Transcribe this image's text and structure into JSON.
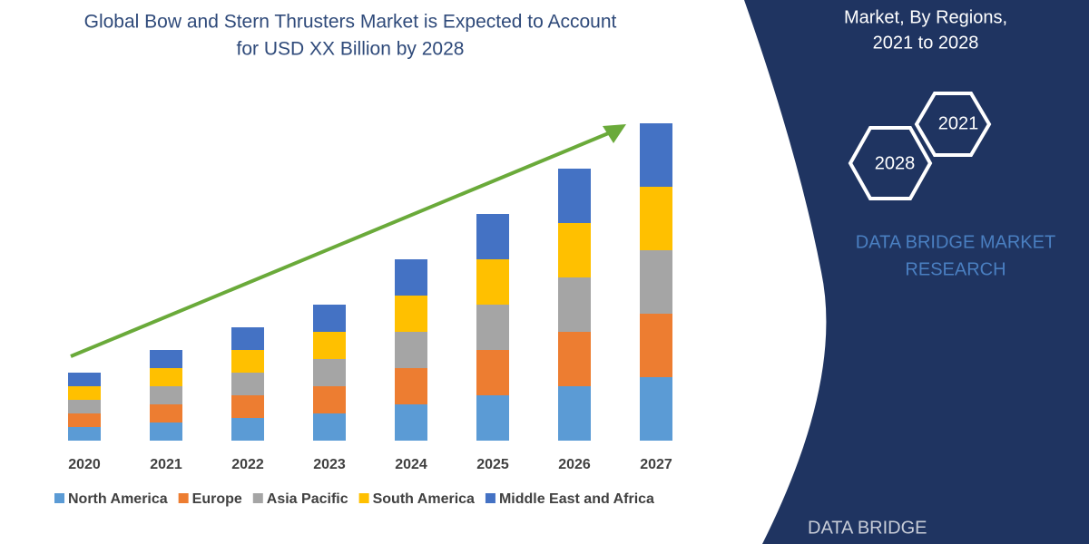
{
  "chart_data": {
    "type": "stacked_bar",
    "title": [
      "Global Bow and Stern Thrusters Market is Expected to Account",
      "for USD XX Billion by 2028"
    ],
    "categories": [
      "2020",
      "2021",
      "2022",
      "2023",
      "2024",
      "2025",
      "2026",
      "2027"
    ],
    "series": [
      {
        "name": "North America",
        "color": "#5b9bd5",
        "values": [
          15,
          20,
          25,
          30,
          40,
          50,
          60,
          70
        ]
      },
      {
        "name": "Europe",
        "color": "#ed7d31",
        "values": [
          15,
          20,
          25,
          30,
          40,
          50,
          60,
          70
        ]
      },
      {
        "name": "Asia Pacific",
        "color": "#a5a5a5",
        "values": [
          15,
          20,
          25,
          30,
          40,
          50,
          60,
          70
        ]
      },
      {
        "name": "South America",
        "color": "#ffc000",
        "values": [
          15,
          20,
          25,
          30,
          40,
          50,
          60,
          70
        ]
      },
      {
        "name": "Middle East and Africa",
        "color": "#4472c4",
        "values": [
          15,
          20,
          25,
          30,
          40,
          50,
          60,
          70
        ]
      }
    ],
    "ylim": [
      0,
      350
    ],
    "legend": "bottom"
  },
  "side_panel": {
    "heading": [
      "Market, By Regions,",
      "2021 to 2028"
    ],
    "hexagons": [
      "2021",
      "2028"
    ],
    "brand": [
      "DATA BRIDGE MARKET",
      "RESEARCH"
    ],
    "logo": "DATA BRIDGE"
  }
}
